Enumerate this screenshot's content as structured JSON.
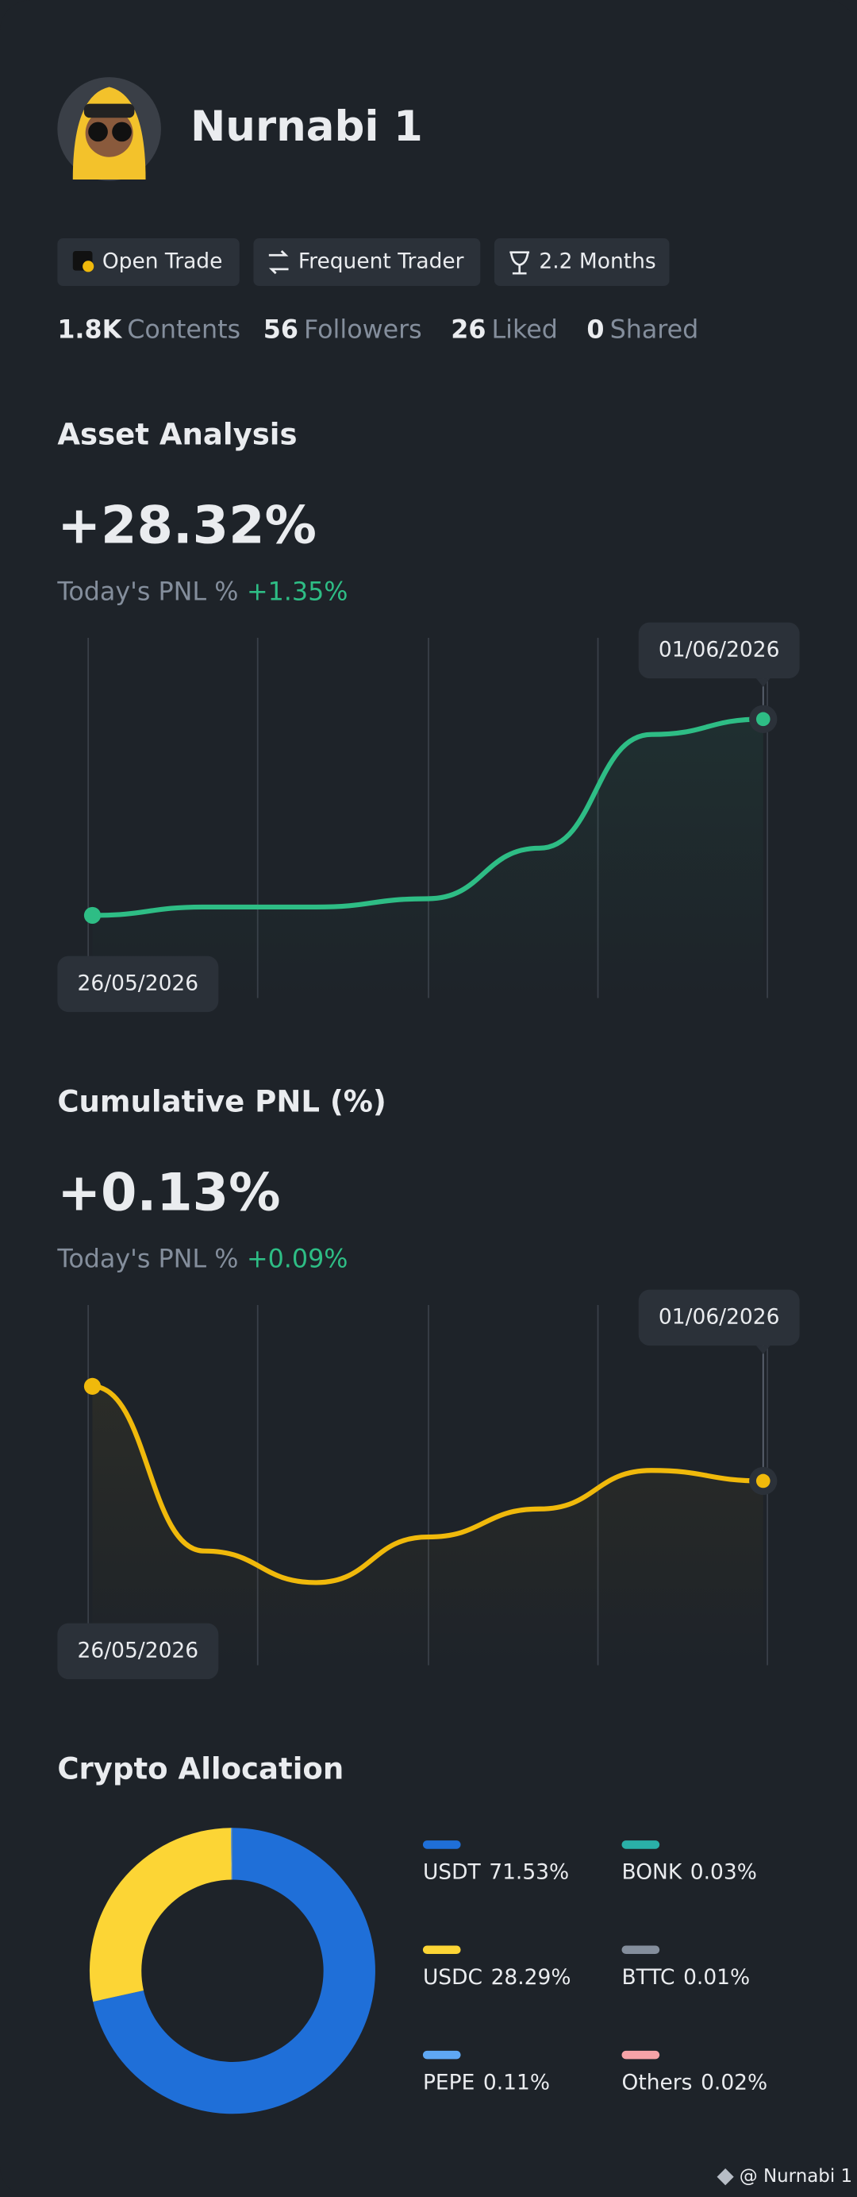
{
  "profile": {
    "name": "Nurnabi 1",
    "badges": [
      "Open Trade",
      "Frequent Trader",
      "2.2 Months"
    ],
    "stats": [
      {
        "value": "1.8K",
        "label": "Contents"
      },
      {
        "value": "56",
        "label": "Followers"
      },
      {
        "value": "26",
        "label": "Liked"
      },
      {
        "value": "0",
        "label": "Shared"
      }
    ]
  },
  "chart_data": [
    {
      "type": "line",
      "title": "Asset Analysis",
      "headline": "+28.32%",
      "subtitle_label": "Today's PNL %",
      "subtitle_value": "+1.35%",
      "categories": [
        "26/05/2026",
        null,
        null,
        null,
        null,
        null,
        "01/06/2026"
      ],
      "values": [
        0,
        1.2,
        1.2,
        2.4,
        9.7,
        26.1,
        28.32
      ],
      "color": "#2ebd85"
    },
    {
      "type": "line",
      "title": "Cumulative PNL (%)",
      "headline": "+0.13%",
      "subtitle_label": "Today's PNL %",
      "subtitle_value": "+0.09%",
      "categories": [
        "26/05/2026",
        null,
        null,
        null,
        null,
        null,
        "01/06/2026"
      ],
      "values": [
        0.4,
        -0.07,
        -0.16,
        -0.03,
        0.05,
        0.16,
        0.13
      ],
      "color": "#f0b90b"
    },
    {
      "type": "pie",
      "title": "Crypto Allocation",
      "categories": [
        "USDT",
        "USDC",
        "PEPE",
        "BONK",
        "BTTC",
        "Others"
      ],
      "values": [
        71.53,
        28.29,
        0.11,
        0.03,
        0.01,
        0.02
      ],
      "value_labels": [
        "71.53%",
        "28.29%",
        "0.11%",
        "0.03%",
        "0.01%",
        "0.02%"
      ],
      "colors": [
        "#1f6fd8",
        "#fcd535",
        "#5fa8f5",
        "#2ab0a8",
        "#848e9c",
        "#f6a3a8"
      ]
    }
  ],
  "footer": "@ Nurnabi 1"
}
